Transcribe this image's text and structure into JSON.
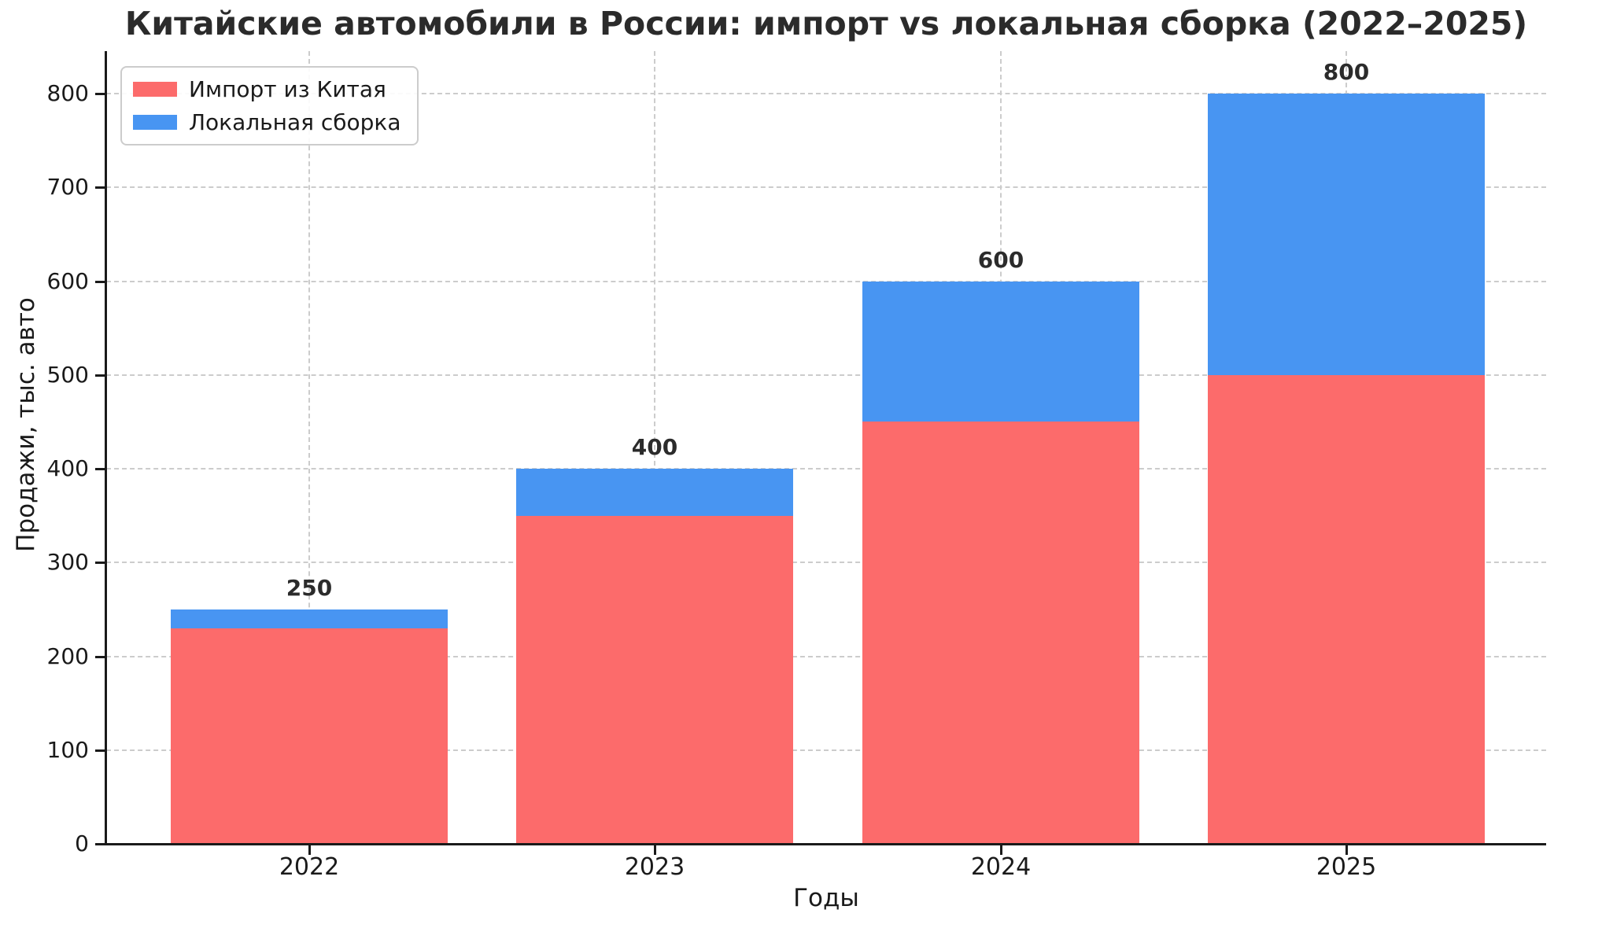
{
  "title": "Китайские автомобили в России: импорт vs локальная сборка (2022–2025)",
  "chart_data": {
    "type": "bar",
    "stacked": true,
    "title": "Китайские автомобили в России: импорт vs локальная сборка (2022–2025)",
    "xlabel": "Годы",
    "ylabel": "Продажи, тыс. авто",
    "categories": [
      "2022",
      "2023",
      "2024",
      "2025"
    ],
    "series": [
      {
        "name": "Импорт из Китая",
        "color": "#FC6B6B",
        "values": [
          230,
          350,
          450,
          500
        ]
      },
      {
        "name": "Локальная сборка",
        "color": "#4895F2",
        "values": [
          20,
          50,
          150,
          300
        ]
      }
    ],
    "totals": [
      250,
      400,
      600,
      800
    ],
    "total_labels": [
      "250",
      "400",
      "600",
      "800"
    ],
    "yticks": [
      0,
      100,
      200,
      300,
      400,
      500,
      600,
      700,
      800
    ],
    "ylim": [
      0,
      845
    ],
    "grid": true,
    "grid_style": "dashed",
    "grid_color": "#cccccc",
    "legend_position": "upper left",
    "axis_color": "#1a1a1a"
  }
}
